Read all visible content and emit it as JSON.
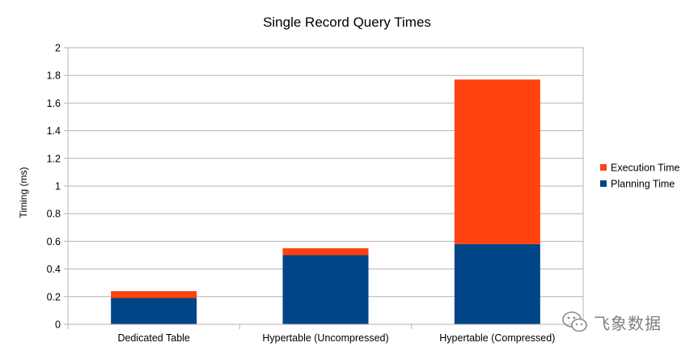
{
  "chart_data": {
    "type": "bar",
    "stacked": true,
    "title": "Single Record Query Times",
    "xlabel": "",
    "ylabel": "Timing (ms)",
    "ylim": [
      0,
      2
    ],
    "yticks": [
      "0",
      "0.2",
      "0.4",
      "0.6",
      "0.8",
      "1",
      "1.2",
      "1.4",
      "1.6",
      "1.8",
      "2"
    ],
    "categories": [
      "Dedicated Table",
      "Hypertable (Uncompressed)",
      "Hypertable (Compressed)"
    ],
    "series": [
      {
        "name": "Planning Time",
        "color": "#004586",
        "values": [
          0.19,
          0.5,
          0.58
        ]
      },
      {
        "name": "Execution Time",
        "color": "#ff420e",
        "values": [
          0.05,
          0.05,
          1.19
        ]
      }
    ],
    "grid": true,
    "legend_position": "right"
  },
  "watermark": {
    "icon": "wechat-icon",
    "text": "飞象数据"
  }
}
